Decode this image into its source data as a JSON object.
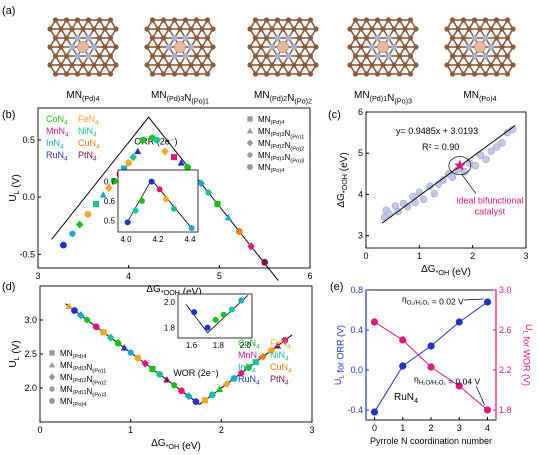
{
  "panel_labels": {
    "a": "(a)",
    "b": "(b)",
    "c": "(c)",
    "d": "(d)",
    "e": "(e)"
  },
  "structures": [
    {
      "base": "MN",
      "sub": "(Pd)4",
      "parts": [
        [
          "MN",
          ""
        ],
        [
          "(Pd)4",
          "s"
        ]
      ]
    },
    {
      "base": "MN",
      "sub": "(Pd)3N(Po)1",
      "parts": [
        [
          "MN",
          ""
        ],
        [
          "(Pd)3",
          "s"
        ],
        [
          "N",
          ""
        ],
        [
          "(Po)1",
          "s"
        ]
      ]
    },
    {
      "base": "MN",
      "sub": "(Pd)2N(Po)2",
      "parts": [
        [
          "MN",
          ""
        ],
        [
          "(Pd)2",
          "s"
        ],
        [
          "N",
          ""
        ],
        [
          "(Po)2",
          "s"
        ]
      ]
    },
    {
      "base": "MN",
      "sub": "(Pd)1N(Po)3",
      "parts": [
        [
          "MN",
          ""
        ],
        [
          "(Pd)1",
          "s"
        ],
        [
          "N",
          ""
        ],
        [
          "(Po)3",
          "s"
        ]
      ]
    },
    {
      "base": "MN",
      "sub": "(Po)4",
      "parts": [
        [
          "MN",
          ""
        ],
        [
          "(Po)4",
          "s"
        ]
      ]
    }
  ],
  "colors": {
    "metal": "#e8b9a4",
    "nitrogen": "#9fb3dd",
    "carbon": "#8a5a3c",
    "Co": "#16c216",
    "Fe": "#f5a623",
    "Mn": "#e0167e",
    "Ni": "#19c39a",
    "In": "#1aa8c9",
    "Cu": "#f07c14",
    "Ru": "#2233c4",
    "Pt": "#7a1452",
    "gray_marker": "#9a9a9a",
    "ideal_star": "#e0167e",
    "orr_line": "#2233c4",
    "wor_line": "#e0167e"
  },
  "chart_data": [
    {
      "id": "b",
      "type": "scatter",
      "title": "ORR (2e⁻)",
      "xlabel": "ΔG*OOH (eV)",
      "ylabel": "UL (V)",
      "xlim": [
        3,
        6
      ],
      "ylim": [
        -0.62,
        0.78
      ],
      "xticks": [
        3,
        4,
        5,
        6
      ],
      "yticks": [
        -0.5,
        0.0,
        0.5
      ],
      "ytick_labels": [
        "-0.5",
        "0.0",
        "0.5"
      ],
      "volcano": {
        "peak_x": 4.22,
        "peak_y": 0.7,
        "left_slope": 1,
        "right_slope": -1
      },
      "legend_metals": [
        {
          "label": "CoN4",
          "base": "CoN",
          "sub": "4",
          "metal": "Co"
        },
        {
          "label": "FeN4",
          "base": "FeN",
          "sub": "4",
          "metal": "Fe"
        },
        {
          "label": "MnN4",
          "base": "MnN",
          "sub": "4",
          "metal": "Mn"
        },
        {
          "label": "NiN4",
          "base": "NiN",
          "sub": "4",
          "metal": "Ni"
        },
        {
          "label": "InN4",
          "base": "InN",
          "sub": "4",
          "metal": "In"
        },
        {
          "label": "CuN4",
          "base": "CuN",
          "sub": "4",
          "metal": "Cu"
        },
        {
          "label": "RuN4",
          "base": "RuN",
          "sub": "4",
          "metal": "Ru"
        },
        {
          "label": "PtN4",
          "base": "PtN",
          "sub": "4",
          "metal": "Pt"
        }
      ],
      "legend_shapes": [
        {
          "label": "MN(Pd)4",
          "shape": "square"
        },
        {
          "label": "MN(Pd)3N(Po)1",
          "shape": "triangle"
        },
        {
          "label": "MN(Pd)2N(Po)2",
          "shape": "diamond"
        },
        {
          "label": "MN(Pd)1N(Po)3",
          "shape": "hexagon"
        },
        {
          "label": "MN(Po)4",
          "shape": "circle"
        }
      ],
      "points": [
        {
          "x": 3.28,
          "y": -0.42,
          "m": "Ru",
          "s": "circle"
        },
        {
          "x": 3.38,
          "y": -0.32,
          "m": "In",
          "s": "hexagon"
        },
        {
          "x": 3.46,
          "y": -0.24,
          "m": "Co",
          "s": "diamond"
        },
        {
          "x": 3.55,
          "y": -0.15,
          "m": "Fe",
          "s": "circle"
        },
        {
          "x": 3.64,
          "y": -0.06,
          "m": "Ni",
          "s": "square"
        },
        {
          "x": 3.72,
          "y": 0.02,
          "m": "In",
          "s": "triangle"
        },
        {
          "x": 3.78,
          "y": 0.08,
          "m": "Fe",
          "s": "diamond"
        },
        {
          "x": 3.84,
          "y": 0.14,
          "m": "Co",
          "s": "circle"
        },
        {
          "x": 3.9,
          "y": 0.2,
          "m": "Mn",
          "s": "hexagon"
        },
        {
          "x": 3.95,
          "y": 0.25,
          "m": "In",
          "s": "square"
        },
        {
          "x": 4.0,
          "y": 0.3,
          "m": "Fe",
          "s": "circle"
        },
        {
          "x": 4.05,
          "y": 0.35,
          "m": "Ni",
          "s": "diamond"
        },
        {
          "x": 4.1,
          "y": 0.4,
          "m": "Ru",
          "s": "triangle"
        },
        {
          "x": 4.16,
          "y": 0.5,
          "m": "Co",
          "s": "circle"
        },
        {
          "x": 4.26,
          "y": 0.52,
          "m": "Co",
          "s": "hexagon"
        },
        {
          "x": 4.31,
          "y": 0.5,
          "m": "Ni",
          "s": "circle"
        },
        {
          "x": 4.4,
          "y": 0.4,
          "m": "Fe",
          "s": "diamond"
        },
        {
          "x": 4.5,
          "y": 0.35,
          "m": "Mn",
          "s": "square"
        },
        {
          "x": 4.58,
          "y": 0.3,
          "m": "Ru",
          "s": "triangle"
        },
        {
          "x": 4.65,
          "y": 0.26,
          "m": "Co",
          "s": "circle"
        },
        {
          "x": 4.72,
          "y": 0.2,
          "m": "Fe",
          "s": "circle"
        },
        {
          "x": 4.8,
          "y": 0.12,
          "m": "In",
          "s": "diamond"
        },
        {
          "x": 4.88,
          "y": 0.04,
          "m": "Ni",
          "s": "hexagon"
        },
        {
          "x": 4.98,
          "y": -0.06,
          "m": "Co",
          "s": "square"
        },
        {
          "x": 5.1,
          "y": -0.18,
          "m": "In",
          "s": "triangle"
        },
        {
          "x": 5.22,
          "y": -0.3,
          "m": "Cu",
          "s": "circle"
        },
        {
          "x": 5.35,
          "y": -0.43,
          "m": "Mn",
          "s": "diamond"
        },
        {
          "x": 5.5,
          "y": -0.57,
          "m": "Pt",
          "s": "circle"
        }
      ],
      "inset": {
        "xlim": [
          3.95,
          4.45
        ],
        "ylim": [
          0.44,
          0.76
        ],
        "xticks": [
          4.0,
          4.2,
          4.4
        ],
        "yticks": [
          0.5,
          0.6,
          0.7
        ],
        "xtick_labels": [
          "4.0",
          "4.2",
          "4.4"
        ],
        "ytick_labels": [
          "0.5",
          "0.6",
          "0.7"
        ],
        "points": [
          {
            "x": 4.01,
            "y": 0.49,
            "m": "Ru",
            "s": "circle"
          },
          {
            "x": 4.06,
            "y": 0.55,
            "m": "Ni",
            "s": "circle"
          },
          {
            "x": 4.1,
            "y": 0.6,
            "m": "Co",
            "s": "circle"
          },
          {
            "x": 4.16,
            "y": 0.7,
            "m": "Ru",
            "s": "circle"
          },
          {
            "x": 4.21,
            "y": 0.66,
            "m": "Mn",
            "s": "circle"
          },
          {
            "x": 4.25,
            "y": 0.61,
            "m": "Fe",
            "s": "circle"
          },
          {
            "x": 4.3,
            "y": 0.56,
            "m": "Ni",
            "s": "circle"
          },
          {
            "x": 4.41,
            "y": 0.46,
            "m": "In",
            "s": "circle"
          }
        ]
      }
    },
    {
      "id": "c",
      "type": "scatter",
      "xlabel": "ΔG*OH (eV)",
      "ylabel": "ΔG*OOH (eV)",
      "xlim": [
        0,
        3
      ],
      "ylim": [
        2.7,
        6
      ],
      "xticks": [
        0,
        1,
        2,
        3
      ],
      "yticks": [
        3,
        4,
        5,
        6
      ],
      "equation": "y= 0.9485x + 3.0193",
      "r2": "R² = 0.90",
      "fit": {
        "slope": 0.9485,
        "intercept": 3.0193
      },
      "ideal_point": {
        "x": 1.76,
        "y": 4.7
      },
      "ideal_label_1": "ideal bifunctional",
      "ideal_label_2": "catalyst",
      "points": [
        {
          "x": 0.35,
          "y": 3.45
        },
        {
          "x": 0.38,
          "y": 3.62
        },
        {
          "x": 0.44,
          "y": 3.52
        },
        {
          "x": 0.55,
          "y": 3.72
        },
        {
          "x": 0.6,
          "y": 3.58
        },
        {
          "x": 0.7,
          "y": 3.78
        },
        {
          "x": 0.78,
          "y": 3.7
        },
        {
          "x": 0.88,
          "y": 3.95
        },
        {
          "x": 0.92,
          "y": 3.8
        },
        {
          "x": 1.0,
          "y": 4.05
        },
        {
          "x": 1.08,
          "y": 3.88
        },
        {
          "x": 1.2,
          "y": 4.2
        },
        {
          "x": 1.28,
          "y": 4.02
        },
        {
          "x": 1.36,
          "y": 4.25
        },
        {
          "x": 1.45,
          "y": 4.35
        },
        {
          "x": 1.55,
          "y": 4.5
        },
        {
          "x": 1.62,
          "y": 4.42
        },
        {
          "x": 1.72,
          "y": 4.6
        },
        {
          "x": 1.85,
          "y": 4.55
        },
        {
          "x": 1.95,
          "y": 4.75
        },
        {
          "x": 2.05,
          "y": 4.7
        },
        {
          "x": 2.15,
          "y": 4.95
        },
        {
          "x": 2.25,
          "y": 4.85
        },
        {
          "x": 2.35,
          "y": 5.05
        },
        {
          "x": 2.45,
          "y": 5.15
        },
        {
          "x": 2.55,
          "y": 5.25
        },
        {
          "x": 2.65,
          "y": 5.5
        },
        {
          "x": 2.75,
          "y": 5.58
        }
      ]
    },
    {
      "id": "d",
      "type": "scatter",
      "title": "WOR (2e⁻)",
      "xlabel": "ΔG*OH (eV)",
      "ylabel": "UL (V)",
      "xlim": [
        0,
        3
      ],
      "ylim": [
        1.5,
        3.5
      ],
      "xticks": [
        0,
        1,
        2,
        3
      ],
      "yticks": [
        2.0,
        2.5,
        3.0
      ],
      "ytick_labels": [
        "2.0",
        "2.5",
        "3.0"
      ],
      "volcano": {
        "min_x": 1.76,
        "min_y": 1.76,
        "left_slope": -1,
        "right_slope": 1
      },
      "legend_metals": [
        {
          "label": "CoN4",
          "base": "CoN",
          "sub": "4",
          "metal": "Co"
        },
        {
          "label": "FeN4",
          "base": "FeN",
          "sub": "4",
          "metal": "Fe"
        },
        {
          "label": "MnN4",
          "base": "MnN",
          "sub": "4",
          "metal": "Mn"
        },
        {
          "label": "NiN4",
          "base": "NiN",
          "sub": "4",
          "metal": "Ni"
        },
        {
          "label": "InN4",
          "base": "InN",
          "sub": "4",
          "metal": "In"
        },
        {
          "label": "CuN4",
          "base": "CuN",
          "sub": "4",
          "metal": "Cu"
        },
        {
          "label": "RuN4",
          "base": "RuN",
          "sub": "4",
          "metal": "Ru"
        },
        {
          "label": "PtN4",
          "base": "PtN",
          "sub": "4",
          "metal": "Pt"
        }
      ],
      "legend_shapes": [
        {
          "label": "MN(Pd)4",
          "shape": "square"
        },
        {
          "label": "MN(Pd)3N(Po)1",
          "shape": "triangle"
        },
        {
          "label": "MN(Pd)2N(Po)2",
          "shape": "diamond"
        },
        {
          "label": "MN(Pd)1N(Po)3",
          "shape": "hexagon"
        },
        {
          "label": "MN(Po)4",
          "shape": "circle"
        }
      ],
      "points": [
        {
          "x": 0.32,
          "y": 3.2,
          "m": "Fe",
          "s": "triangle"
        },
        {
          "x": 0.38,
          "y": 3.14,
          "m": "Ru",
          "s": "circle"
        },
        {
          "x": 0.45,
          "y": 3.07,
          "m": "In",
          "s": "diamond"
        },
        {
          "x": 0.52,
          "y": 3.0,
          "m": "Co",
          "s": "hexagon"
        },
        {
          "x": 0.62,
          "y": 2.9,
          "m": "Mn",
          "s": "circle"
        },
        {
          "x": 0.7,
          "y": 2.82,
          "m": "Fe",
          "s": "square"
        },
        {
          "x": 0.78,
          "y": 2.74,
          "m": "Ni",
          "s": "diamond"
        },
        {
          "x": 0.86,
          "y": 2.66,
          "m": "Co",
          "s": "circle"
        },
        {
          "x": 0.93,
          "y": 2.59,
          "m": "Ru",
          "s": "triangle"
        },
        {
          "x": 1.0,
          "y": 2.52,
          "m": "In",
          "s": "hexagon"
        },
        {
          "x": 1.08,
          "y": 2.44,
          "m": "Fe",
          "s": "circle"
        },
        {
          "x": 1.16,
          "y": 2.36,
          "m": "Mn",
          "s": "diamond"
        },
        {
          "x": 1.24,
          "y": 2.28,
          "m": "Co",
          "s": "square"
        },
        {
          "x": 1.32,
          "y": 2.2,
          "m": "Ni",
          "s": "circle"
        },
        {
          "x": 1.4,
          "y": 2.12,
          "m": "Pt",
          "s": "triangle"
        },
        {
          "x": 1.48,
          "y": 2.04,
          "m": "Co",
          "s": "hexagon"
        },
        {
          "x": 1.56,
          "y": 1.96,
          "m": "Mn",
          "s": "circle"
        },
        {
          "x": 1.64,
          "y": 1.88,
          "m": "In",
          "s": "diamond"
        },
        {
          "x": 1.72,
          "y": 1.8,
          "m": "Ru",
          "s": "circle"
        },
        {
          "x": 1.82,
          "y": 1.82,
          "m": "Fe",
          "s": "square"
        },
        {
          "x": 1.9,
          "y": 1.9,
          "m": "Ni",
          "s": "circle"
        },
        {
          "x": 1.98,
          "y": 1.98,
          "m": "Co",
          "s": "triangle"
        },
        {
          "x": 2.06,
          "y": 2.06,
          "m": "Fe",
          "s": "diamond"
        },
        {
          "x": 2.14,
          "y": 2.14,
          "m": "In",
          "s": "circle"
        },
        {
          "x": 2.22,
          "y": 2.22,
          "m": "Mn",
          "s": "hexagon"
        },
        {
          "x": 2.3,
          "y": 2.3,
          "m": "Co",
          "s": "circle"
        },
        {
          "x": 2.38,
          "y": 2.38,
          "m": "Ni",
          "s": "square"
        },
        {
          "x": 2.46,
          "y": 2.46,
          "m": "Cu",
          "s": "diamond"
        },
        {
          "x": 2.55,
          "y": 2.55,
          "m": "Fe",
          "s": "circle"
        },
        {
          "x": 2.62,
          "y": 2.62,
          "m": "Pt",
          "s": "triangle"
        },
        {
          "x": 2.7,
          "y": 2.7,
          "m": "Mn",
          "s": "circle"
        }
      ],
      "inset": {
        "xlim": [
          1.5,
          2.05
        ],
        "ylim": [
          1.72,
          2.06
        ],
        "xticks": [
          1.6,
          1.8,
          2.0
        ],
        "yticks": [
          1.8,
          2.0
        ],
        "xtick_labels": [
          "1.6",
          "1.8",
          "2.0"
        ],
        "ytick_labels": [
          "1.8",
          "2.0"
        ],
        "points": [
          {
            "x": 1.62,
            "y": 1.92,
            "m": "Ru",
            "s": "circle"
          },
          {
            "x": 1.72,
            "y": 1.8,
            "m": "Ru",
            "s": "circle"
          },
          {
            "x": 1.78,
            "y": 1.86,
            "m": "Co",
            "s": "circle"
          },
          {
            "x": 1.84,
            "y": 1.9,
            "m": "Co",
            "s": "circle"
          },
          {
            "x": 1.9,
            "y": 1.94,
            "m": "Ni",
            "s": "circle"
          },
          {
            "x": 1.97,
            "y": 2.01,
            "m": "In",
            "s": "circle"
          }
        ]
      }
    },
    {
      "id": "e",
      "type": "line",
      "xlabel": "Pyrrole N coordination number",
      "ylabel_left": "UL for ORR (V)",
      "ylabel_right": "UL for WOR (V)",
      "label": "RuN4",
      "x": [
        0,
        1,
        2,
        3,
        4
      ],
      "xticks": [
        0,
        1,
        2,
        3,
        4
      ],
      "xlim": [
        -0.3,
        4.3
      ],
      "ylim_left": [
        -0.5,
        0.8
      ],
      "yticks_left": [
        -0.4,
        0.0,
        0.4,
        0.8
      ],
      "ytick_labels_left": [
        "-0.4",
        "0.0",
        "0.4",
        "0.8"
      ],
      "ylim_right": [
        1.7,
        3.0
      ],
      "yticks_right": [
        1.8,
        2.2,
        2.6,
        3.0
      ],
      "ytick_labels_right": [
        "1.8",
        "2.2",
        "2.6",
        "3.0"
      ],
      "series": [
        {
          "name": "ORR",
          "axis": "left",
          "values": [
            -0.42,
            0.04,
            0.24,
            0.48,
            0.68
          ]
        },
        {
          "name": "WOR",
          "axis": "right",
          "values": [
            2.68,
            2.5,
            2.23,
            2.04,
            1.8
          ]
        }
      ],
      "annotations": [
        {
          "text": "ηO₂/H₂O₂ = 0.02 V",
          "at": "orr-last"
        },
        {
          "text": "ηH₂O/H₂O₂ = 0.04 V",
          "at": "wor-last"
        }
      ]
    }
  ]
}
